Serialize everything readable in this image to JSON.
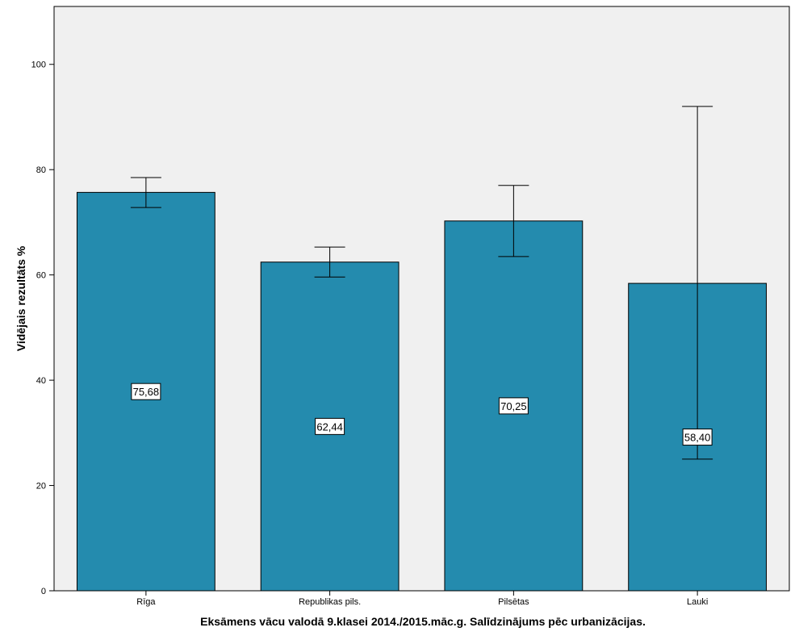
{
  "chart_data": {
    "type": "bar",
    "categories": [
      "Rīga",
      "Republikas pils.",
      "Pilsētas",
      "Lauki"
    ],
    "values": [
      75.68,
      62.44,
      70.25,
      58.4
    ],
    "value_labels": [
      "75,68",
      "62,44",
      "70,25",
      "58,40"
    ],
    "error_bars": [
      {
        "low": 72.8,
        "high": 78.5
      },
      {
        "low": 59.6,
        "high": 65.3
      },
      {
        "low": 63.5,
        "high": 77.0
      },
      {
        "low": 25.0,
        "high": 92.0
      }
    ],
    "xlabel": "Eksāmens vācu valodā 9.klasei 2014./2015.māc.g. Salīdzinājums pēc urbanizācijas.",
    "ylabel": "Vidējais rezultāts %",
    "ylim": [
      0,
      111
    ],
    "yticks": [
      0,
      20,
      40,
      60,
      80,
      100
    ],
    "grid": false,
    "bar_color": "#248bae",
    "plot_background": "#f0f0f0"
  }
}
